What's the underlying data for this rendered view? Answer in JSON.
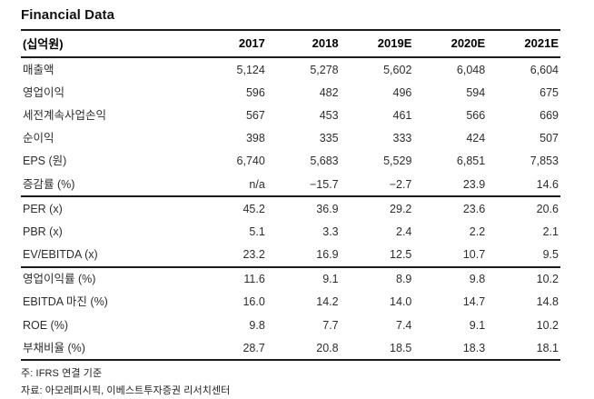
{
  "title": "Financial Data",
  "table": {
    "unit_header": "(십억원)",
    "columns": [
      "2017",
      "2018",
      "2019E",
      "2020E",
      "2021E"
    ],
    "groups": [
      {
        "rows": [
          {
            "label": "매출액",
            "values": [
              "5,124",
              "5,278",
              "5,602",
              "6,048",
              "6,604"
            ]
          },
          {
            "label": "영업이익",
            "values": [
              "596",
              "482",
              "496",
              "594",
              "675"
            ]
          },
          {
            "label": "세전계속사업손익",
            "values": [
              "567",
              "453",
              "461",
              "566",
              "669"
            ]
          },
          {
            "label": "순이익",
            "values": [
              "398",
              "335",
              "333",
              "424",
              "507"
            ]
          },
          {
            "label": "EPS (원)",
            "values": [
              "6,740",
              "5,683",
              "5,529",
              "6,851",
              "7,853"
            ]
          },
          {
            "label": "증감률 (%)",
            "values": [
              "n/a",
              "−15.7",
              "−2.7",
              "23.9",
              "14.6"
            ]
          }
        ]
      },
      {
        "rows": [
          {
            "label": "PER (x)",
            "values": [
              "45.2",
              "36.9",
              "29.2",
              "23.6",
              "20.6"
            ]
          },
          {
            "label": "PBR (x)",
            "values": [
              "5.1",
              "3.3",
              "2.4",
              "2.2",
              "2.1"
            ]
          },
          {
            "label": "EV/EBITDA (x)",
            "values": [
              "23.2",
              "16.9",
              "12.5",
              "10.7",
              "9.5"
            ]
          }
        ]
      },
      {
        "rows": [
          {
            "label": "영업이익률 (%)",
            "values": [
              "11.6",
              "9.1",
              "8.9",
              "9.8",
              "10.2"
            ]
          },
          {
            "label": "EBITDA 마진 (%)",
            "values": [
              "16.0",
              "14.2",
              "14.0",
              "14.7",
              "14.8"
            ]
          },
          {
            "label": "ROE (%)",
            "values": [
              "9.8",
              "7.7",
              "7.4",
              "9.1",
              "10.2"
            ]
          },
          {
            "label": "부채비율 (%)",
            "values": [
              "28.7",
              "20.8",
              "18.5",
              "18.3",
              "18.1"
            ]
          }
        ]
      }
    ]
  },
  "footnotes": [
    "주: IFRS 연결 기준",
    "자료: 아모레퍼시픽, 이베스트투자증권 리서치센터"
  ],
  "colors": {
    "rule": "#1b1b1b",
    "text": "#2d2d2d",
    "header_text": "#000000"
  }
}
